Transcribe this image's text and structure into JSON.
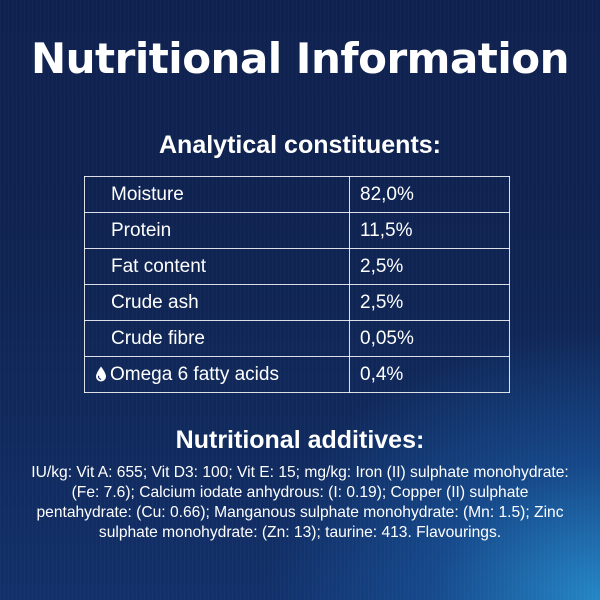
{
  "title": "Nutritional Information",
  "analytical": {
    "heading": "Analytical constituents:",
    "rows": [
      {
        "name": "Moisture",
        "value": "82,0%"
      },
      {
        "name": "Protein",
        "value": "11,5%"
      },
      {
        "name": "Fat content",
        "value": "2,5%"
      },
      {
        "name": "Crude ash",
        "value": "2,5%"
      },
      {
        "name": "Crude fibre",
        "value": "0,05%"
      },
      {
        "name": "Omega 6 fatty acids",
        "value": "0,4%",
        "icon": "water-drop-icon"
      }
    ]
  },
  "additives": {
    "heading": "Nutritional additives:",
    "text": "IU/kg: Vit A: 655; Vit D3: 100; Vit E: 15; mg/kg: Iron (II) sulphate monohydrate: (Fe: 7.6); Calcium iodate anhydrous: (I: 0.19); Copper (II) sulphate pentahydrate: (Cu: 0.66); Manganous sulphate monohydrate: (Mn: 1.5); Zinc sulphate monohydrate: (Zn: 13); taurine: 413. Flavourings."
  },
  "colors": {
    "background_dark": "#0f2150",
    "background_light": "#2896d7",
    "text": "#ffffff"
  }
}
